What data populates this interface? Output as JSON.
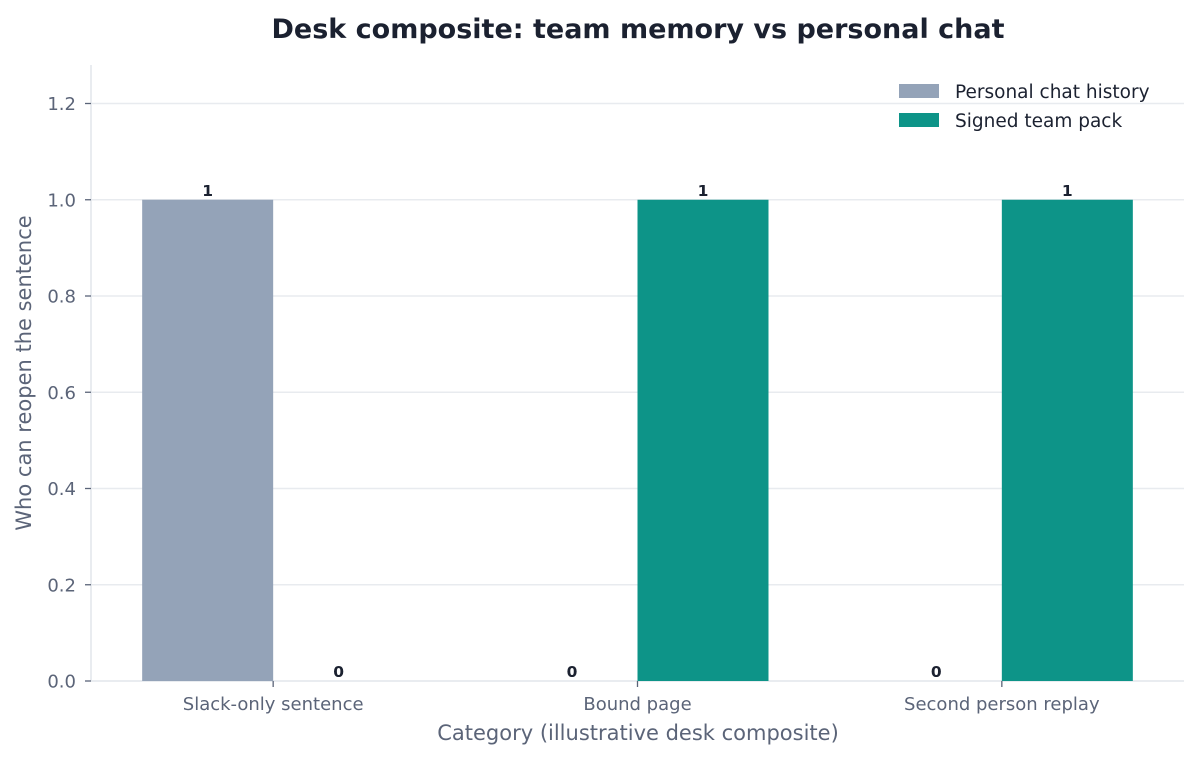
{
  "chart_data": {
    "type": "bar",
    "title": "Desk composite: team memory vs personal chat",
    "xlabel": "Category (illustrative desk composite)",
    "ylabel": "Who can reopen the sentence",
    "categories": [
      "Slack-only sentence",
      "Bound page",
      "Second person replay"
    ],
    "series": [
      {
        "name": "Personal chat history",
        "values": [
          1,
          0,
          0
        ],
        "color": "#94a3b8"
      },
      {
        "name": "Signed team pack",
        "values": [
          0,
          1,
          1
        ],
        "color": "#0d9488"
      }
    ],
    "ylim": [
      0,
      1.28
    ],
    "yticks": [
      "0.0",
      "0.2",
      "0.4",
      "0.6",
      "0.8",
      "1.0",
      "1.2"
    ],
    "grid": "horizontal",
    "legend_position": "top-right"
  }
}
